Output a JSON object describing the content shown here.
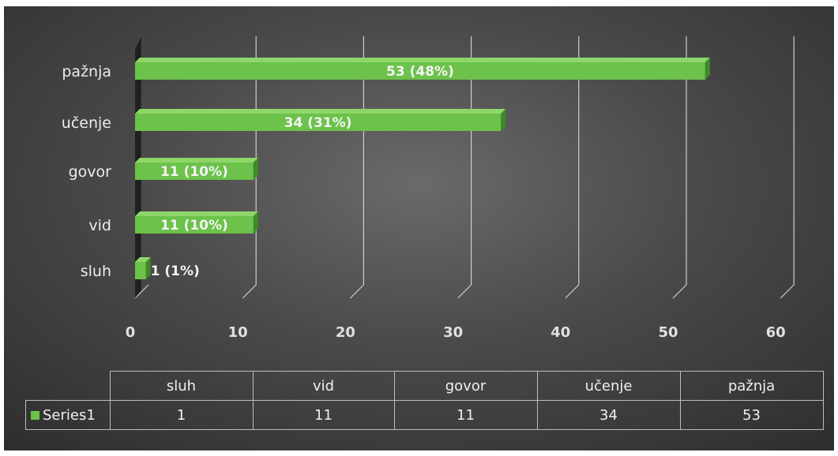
{
  "chart_data": {
    "type": "bar",
    "orientation": "horizontal",
    "categories": [
      "sluh",
      "vid",
      "govor",
      "učenje",
      "pažnja"
    ],
    "series": [
      {
        "name": "Series1",
        "values": [
          1,
          11,
          11,
          34,
          53
        ],
        "data_labels": [
          "1 (1%)",
          "11 (10%)",
          "11 (10%)",
          "34 (31%)",
          "53 (48%)"
        ]
      }
    ],
    "xlim": [
      0,
      60
    ],
    "x_ticks": [
      "0",
      "10",
      "20",
      "30",
      "40",
      "50",
      "60"
    ],
    "grid": true,
    "data_table": true,
    "colors": {
      "bar": "#6cc24a",
      "bar_top": "#8fd66a",
      "bar_side": "#3f8a25",
      "background": "#3a3a3a",
      "grid": "#cfcfcf"
    }
  }
}
